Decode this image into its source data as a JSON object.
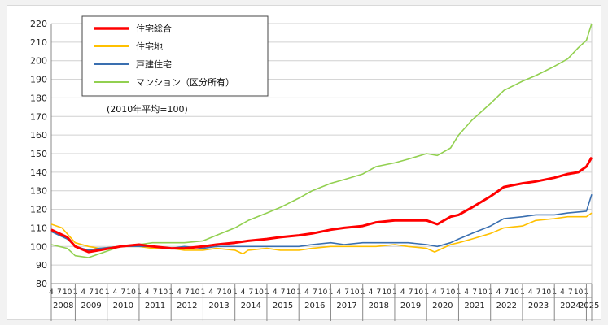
{
  "chart_data": {
    "type": "line",
    "note": "(2010年平均=100)",
    "ylim": [
      80,
      220
    ],
    "yticks": [
      80,
      90,
      100,
      110,
      120,
      130,
      140,
      150,
      160,
      170,
      180,
      190,
      200,
      210,
      220
    ],
    "grid": true,
    "legend_position": "top-left",
    "x_start": "2008-04",
    "x_end": "2025-03",
    "month_tick_labels": [
      "4",
      "7",
      "10",
      "1"
    ],
    "years": [
      "2008",
      "2009",
      "2010",
      "2011",
      "2012",
      "2013",
      "2014",
      "2015",
      "2016",
      "2017",
      "2018",
      "2019",
      "2020",
      "2021",
      "2022",
      "2023",
      "2024",
      "2025"
    ],
    "series": [
      {
        "name": "住宅総合",
        "color": "#ff0000",
        "width": 3,
        "points": [
          [
            "2008-04",
            109
          ],
          [
            "2008-10",
            105
          ],
          [
            "2009-01",
            100
          ],
          [
            "2009-06",
            97
          ],
          [
            "2009-10",
            98
          ],
          [
            "2010-06",
            100
          ],
          [
            "2011-01",
            101
          ],
          [
            "2011-06",
            100
          ],
          [
            "2012-01",
            99
          ],
          [
            "2012-06",
            99
          ],
          [
            "2013-01",
            100
          ],
          [
            "2013-06",
            101
          ],
          [
            "2014-01",
            102
          ],
          [
            "2014-06",
            103
          ],
          [
            "2015-01",
            104
          ],
          [
            "2015-06",
            105
          ],
          [
            "2016-01",
            106
          ],
          [
            "2016-06",
            107
          ],
          [
            "2017-01",
            109
          ],
          [
            "2017-06",
            110
          ],
          [
            "2018-01",
            111
          ],
          [
            "2018-06",
            113
          ],
          [
            "2019-01",
            114
          ],
          [
            "2019-06",
            114
          ],
          [
            "2020-01",
            114
          ],
          [
            "2020-05",
            112
          ],
          [
            "2020-10",
            116
          ],
          [
            "2021-01",
            117
          ],
          [
            "2021-06",
            121
          ],
          [
            "2022-01",
            127
          ],
          [
            "2022-06",
            132
          ],
          [
            "2023-01",
            134
          ],
          [
            "2023-06",
            135
          ],
          [
            "2024-01",
            137
          ],
          [
            "2024-06",
            139
          ],
          [
            "2024-10",
            140
          ],
          [
            "2025-01",
            143
          ],
          [
            "2025-03",
            148
          ]
        ]
      },
      {
        "name": "住宅地",
        "color": "#ffc000",
        "width": 1.6,
        "points": [
          [
            "2008-04",
            112
          ],
          [
            "2008-08",
            110
          ],
          [
            "2009-01",
            102
          ],
          [
            "2009-06",
            100
          ],
          [
            "2009-10",
            99
          ],
          [
            "2010-06",
            100
          ],
          [
            "2011-01",
            100
          ],
          [
            "2011-06",
            99
          ],
          [
            "2012-01",
            99
          ],
          [
            "2012-06",
            98
          ],
          [
            "2013-01",
            98
          ],
          [
            "2013-06",
            99
          ],
          [
            "2014-01",
            98
          ],
          [
            "2014-04",
            96
          ],
          [
            "2014-06",
            98
          ],
          [
            "2015-01",
            99
          ],
          [
            "2015-06",
            98
          ],
          [
            "2016-01",
            98
          ],
          [
            "2016-06",
            99
          ],
          [
            "2017-01",
            100
          ],
          [
            "2017-06",
            100
          ],
          [
            "2018-01",
            100
          ],
          [
            "2018-06",
            100
          ],
          [
            "2019-01",
            101
          ],
          [
            "2019-06",
            100
          ],
          [
            "2020-01",
            99
          ],
          [
            "2020-04",
            97
          ],
          [
            "2020-10",
            101
          ],
          [
            "2021-01",
            102
          ],
          [
            "2021-06",
            104
          ],
          [
            "2022-01",
            107
          ],
          [
            "2022-06",
            110
          ],
          [
            "2023-01",
            111
          ],
          [
            "2023-06",
            114
          ],
          [
            "2024-01",
            115
          ],
          [
            "2024-06",
            116
          ],
          [
            "2025-01",
            116
          ],
          [
            "2025-03",
            118
          ]
        ]
      },
      {
        "name": "戸建住宅",
        "color": "#3a6fb0",
        "width": 1.6,
        "points": [
          [
            "2008-04",
            108
          ],
          [
            "2008-10",
            104
          ],
          [
            "2009-01",
            100
          ],
          [
            "2009-06",
            98
          ],
          [
            "2009-10",
            99
          ],
          [
            "2010-06",
            100
          ],
          [
            "2011-01",
            100
          ],
          [
            "2011-06",
            100
          ],
          [
            "2012-01",
            99
          ],
          [
            "2012-06",
            100
          ],
          [
            "2013-01",
            99
          ],
          [
            "2013-06",
            100
          ],
          [
            "2014-01",
            100
          ],
          [
            "2014-06",
            100
          ],
          [
            "2015-01",
            100
          ],
          [
            "2015-06",
            100
          ],
          [
            "2016-01",
            100
          ],
          [
            "2016-06",
            101
          ],
          [
            "2017-01",
            102
          ],
          [
            "2017-06",
            101
          ],
          [
            "2018-01",
            102
          ],
          [
            "2018-06",
            102
          ],
          [
            "2019-01",
            102
          ],
          [
            "2019-06",
            102
          ],
          [
            "2020-01",
            101
          ],
          [
            "2020-05",
            100
          ],
          [
            "2020-10",
            102
          ],
          [
            "2021-01",
            104
          ],
          [
            "2021-06",
            107
          ],
          [
            "2022-01",
            111
          ],
          [
            "2022-06",
            115
          ],
          [
            "2023-01",
            116
          ],
          [
            "2023-06",
            117
          ],
          [
            "2024-01",
            117
          ],
          [
            "2024-06",
            118
          ],
          [
            "2025-01",
            119
          ],
          [
            "2025-03",
            128
          ]
        ]
      },
      {
        "name": "マンション（区分所有）",
        "color": "#92d050",
        "width": 1.6,
        "points": [
          [
            "2008-04",
            101
          ],
          [
            "2008-10",
            99
          ],
          [
            "2009-01",
            95
          ],
          [
            "2009-06",
            94
          ],
          [
            "2009-10",
            96
          ],
          [
            "2010-06",
            100
          ],
          [
            "2011-01",
            101
          ],
          [
            "2011-06",
            102
          ],
          [
            "2012-01",
            102
          ],
          [
            "2012-06",
            102
          ],
          [
            "2013-01",
            103
          ],
          [
            "2013-06",
            106
          ],
          [
            "2014-01",
            110
          ],
          [
            "2014-06",
            114
          ],
          [
            "2015-01",
            118
          ],
          [
            "2015-06",
            121
          ],
          [
            "2016-01",
            126
          ],
          [
            "2016-06",
            130
          ],
          [
            "2017-01",
            134
          ],
          [
            "2017-06",
            136
          ],
          [
            "2018-01",
            139
          ],
          [
            "2018-06",
            143
          ],
          [
            "2019-01",
            145
          ],
          [
            "2019-06",
            147
          ],
          [
            "2020-01",
            150
          ],
          [
            "2020-05",
            149
          ],
          [
            "2020-10",
            153
          ],
          [
            "2021-01",
            160
          ],
          [
            "2021-06",
            168
          ],
          [
            "2022-01",
            177
          ],
          [
            "2022-06",
            184
          ],
          [
            "2023-01",
            189
          ],
          [
            "2023-06",
            192
          ],
          [
            "2024-01",
            197
          ],
          [
            "2024-06",
            201
          ],
          [
            "2024-10",
            207
          ],
          [
            "2025-01",
            211
          ],
          [
            "2025-03",
            220
          ]
        ]
      }
    ]
  }
}
